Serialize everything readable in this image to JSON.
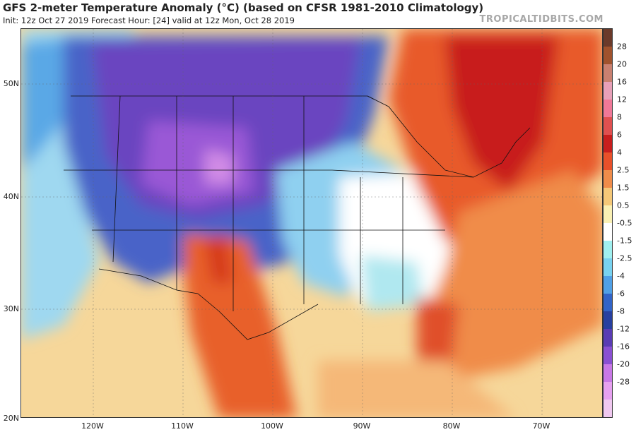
{
  "header": {
    "title": "GFS 2-meter Temperature Anomaly (°C) (based on CFSR 1981-2010 Climatology)",
    "subtitle": "Init: 12z Oct 27 2019   Forecast Hour: [24]   valid at 12z Mon, Oct 28 2019",
    "source": "TROPICALTIDBITS.COM"
  },
  "axes": {
    "lat_labels": [
      "50N",
      "40N",
      "30N",
      "20N"
    ],
    "lon_labels": [
      "120W",
      "110W",
      "100W",
      "90W",
      "80W",
      "70W"
    ]
  },
  "colorbar": {
    "labels": [
      "28",
      "20",
      "16",
      "12",
      "8",
      "6",
      "4",
      "2.5",
      "1.5",
      "0.5",
      "-0.5",
      "-1.5",
      "-2.5",
      "-4",
      "-6",
      "-8",
      "-12",
      "-16",
      "-20",
      "-28"
    ],
    "colors": [
      "#6b3a2a",
      "#a0522d",
      "#c98070",
      "#e8a0b8",
      "#f07898",
      "#e05050",
      "#c81e1e",
      "#e8502a",
      "#f08c4a",
      "#f5c878",
      "#faf0b4",
      "#ffffff",
      "#a0f0f0",
      "#78d2f0",
      "#50a0e6",
      "#3264c8",
      "#2840a0",
      "#5a3cb4",
      "#8a50d2",
      "#c878e6",
      "#e6a0f0",
      "#f0c8f0"
    ]
  }
}
